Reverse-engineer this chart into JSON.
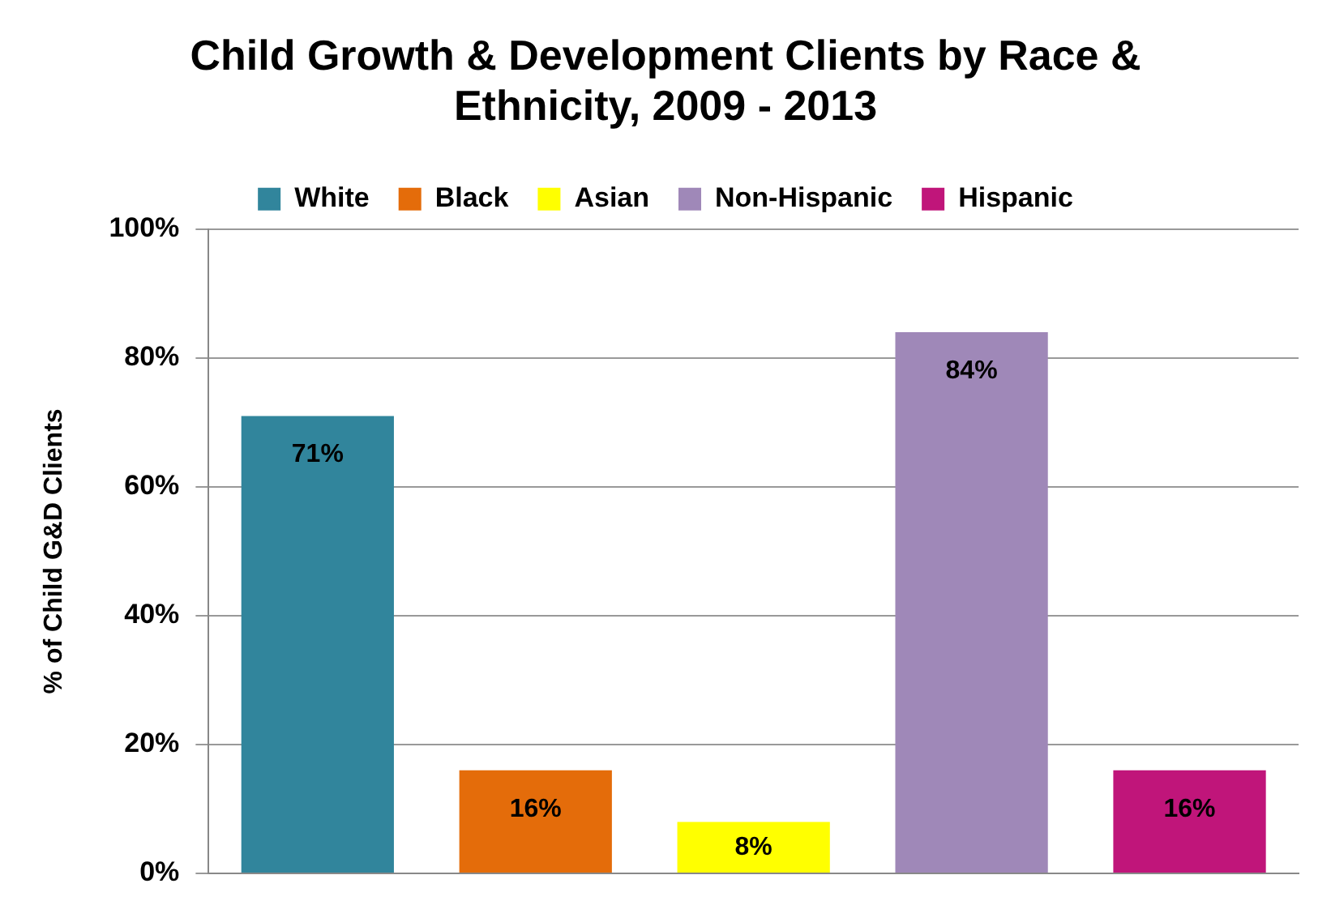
{
  "chart_data": {
    "type": "bar",
    "title": "Child Growth & Development Clients by Race & Ethnicity, 2009 - 2013",
    "ylabel": "% of Child G&D Clients",
    "categories": [
      null,
      null,
      null,
      null,
      null
    ],
    "series": [
      {
        "name": "White",
        "color": "#31859c",
        "values": [
          71,
          null,
          null,
          null,
          null
        ],
        "value_labels": [
          "71%",
          null,
          null,
          null,
          null
        ]
      },
      {
        "name": "Black",
        "color": "#e46c0a",
        "values": [
          null,
          16,
          null,
          null,
          null
        ],
        "value_labels": [
          null,
          "16%",
          null,
          null,
          null
        ]
      },
      {
        "name": "Asian",
        "color": "#ffff00",
        "values": [
          null,
          null,
          8,
          null,
          null
        ],
        "value_labels": [
          null,
          null,
          "8%",
          null,
          null
        ]
      },
      {
        "name": "Non-Hispanic",
        "color": "#9f88b8",
        "values": [
          null,
          null,
          null,
          84,
          null
        ],
        "value_labels": [
          null,
          null,
          null,
          "84%",
          null
        ]
      },
      {
        "name": "Hispanic",
        "color": "#c0157a",
        "values": [
          null,
          null,
          null,
          null,
          16
        ],
        "value_labels": [
          null,
          null,
          null,
          null,
          "16%"
        ]
      }
    ],
    "ylim": [
      0,
      100
    ],
    "yticks": [
      {
        "value": 0,
        "label": "0%"
      },
      {
        "value": 20,
        "label": "20%"
      },
      {
        "value": 40,
        "label": "40%"
      },
      {
        "value": 60,
        "label": "60%"
      },
      {
        "value": 80,
        "label": "80%"
      },
      {
        "value": 100,
        "label": "100%"
      }
    ],
    "grid": "y",
    "legend": "top",
    "tick_labels": "y"
  }
}
